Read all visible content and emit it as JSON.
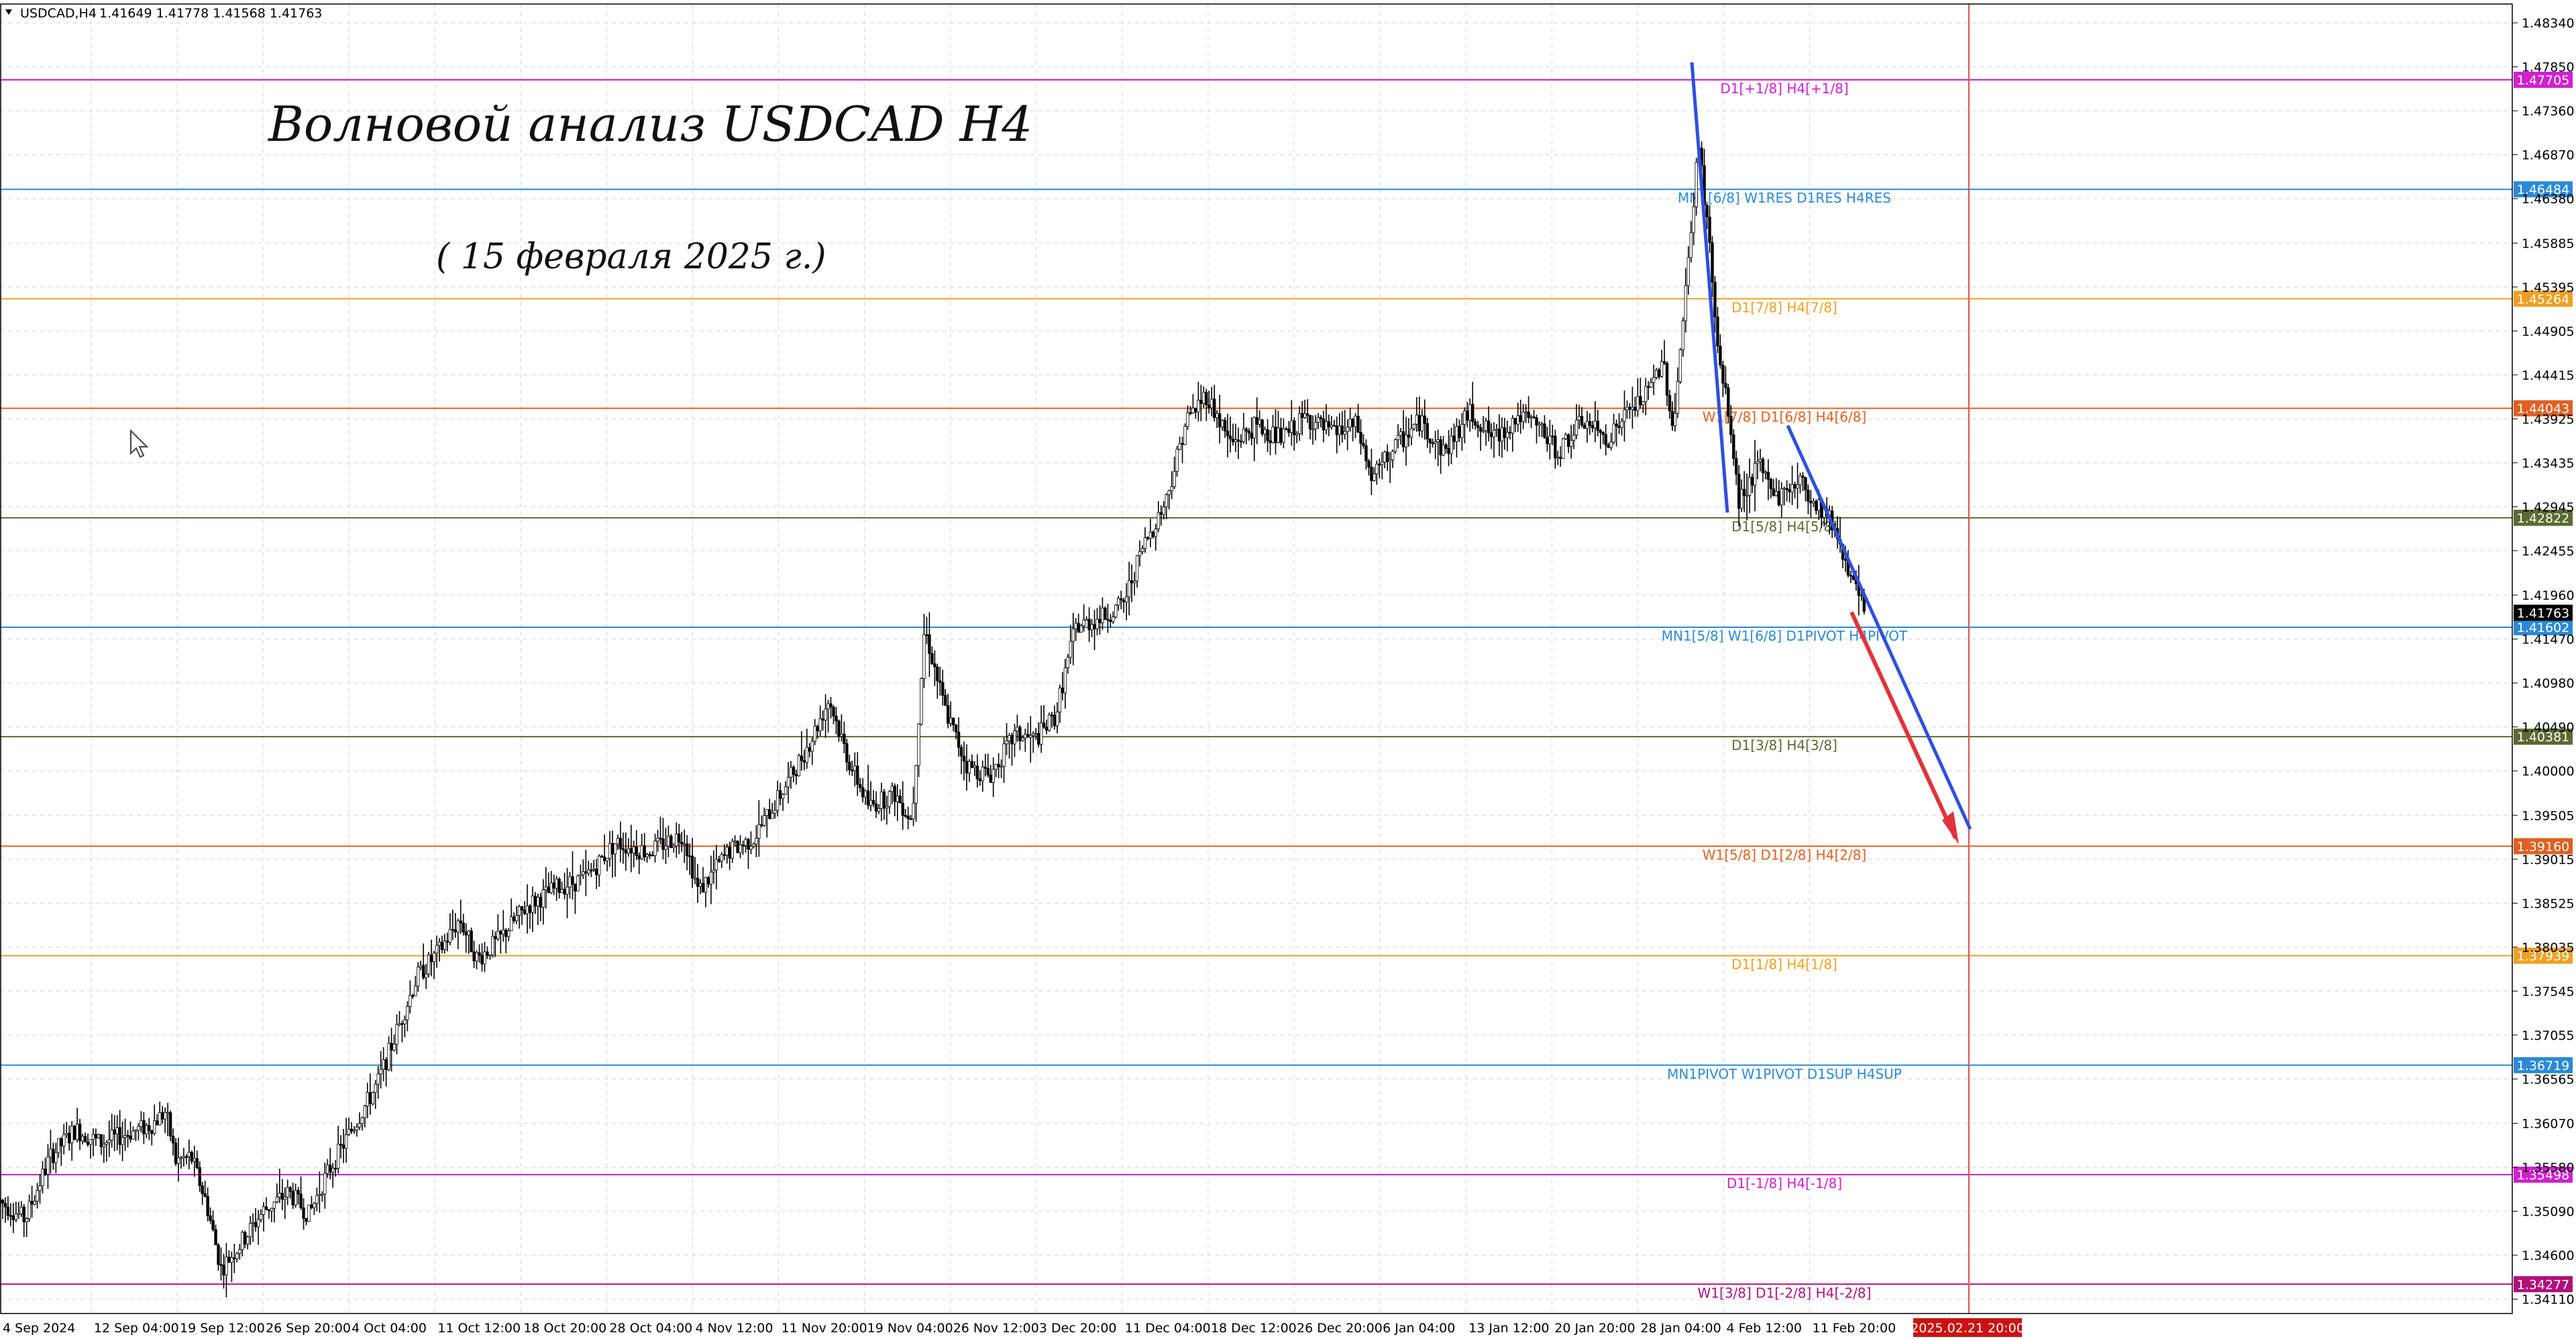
{
  "header": {
    "symbol": "USDCAD,H4",
    "ohlc": "1.41649 1.41778 1.41568 1.41763"
  },
  "annotations": {
    "title": "Волновой анализ USDCAD H4",
    "date": "( 15 февраля 2025 г.)"
  },
  "colors": {
    "blue_line": "#2f4fe0",
    "red_arrow": "#e0333a",
    "candles": "#000000",
    "vline": "#e05050"
  },
  "chart_data": {
    "type": "candlestick",
    "symbol": "USDCAD",
    "timeframe": "H4",
    "ylim": [
      1.3395,
      1.4855
    ],
    "y_ticks": [
      "1.48340",
      "1.47850",
      "1.47360",
      "1.46870",
      "1.46380",
      "1.45885",
      "1.45395",
      "1.44905",
      "1.44415",
      "1.43925",
      "1.43435",
      "1.42945",
      "1.42455",
      "1.41960",
      "1.41470",
      "1.40980",
      "1.40490",
      "1.40000",
      "1.39505",
      "1.39015",
      "1.38525",
      "1.38035",
      "1.37545",
      "1.37055",
      "1.36565",
      "1.36070",
      "1.35580",
      "1.35090",
      "1.34600",
      "1.34110"
    ],
    "x_ticks": [
      "4 Sep 2024",
      "12 Sep 04:00",
      "19 Sep 12:00",
      "26 Sep 20:00",
      "4 Oct 04:00",
      "11 Oct 12:00",
      "18 Oct 20:00",
      "28 Oct 04:00",
      "4 Nov 12:00",
      "11 Nov 20:00",
      "19 Nov 04:00",
      "26 Nov 12:00",
      "3 Dec 20:00",
      "11 Dec 04:00",
      "18 Dec 12:00",
      "26 Dec 20:00",
      "6 Jan 04:00",
      "13 Jan 12:00",
      "20 Jan 20:00",
      "28 Jan 04:00",
      "4 Feb 12:00",
      "11 Feb 20:00"
    ],
    "x_tick_positions": [
      0,
      0.0363,
      0.0705,
      0.1047,
      0.1389,
      0.1731,
      0.2073,
      0.2415,
      0.2757,
      0.3099,
      0.3441,
      0.3783,
      0.4125,
      0.4467,
      0.4809,
      0.5151,
      0.5493,
      0.5835,
      0.6177,
      0.6519,
      0.6861,
      0.7203
    ],
    "future_marker": "2025.02.21 20:00",
    "current_price": "1.41763",
    "levels": [
      {
        "value": 1.47705,
        "label": "D1[+1/8] H4[+1/8]",
        "tag": "1.47705",
        "color": "#d020d0"
      },
      {
        "value": 1.46484,
        "label": "MN1[6/8] W1RES D1RES H4RES",
        "tag": "1.46484",
        "color": "#2a8ad8"
      },
      {
        "value": 1.45264,
        "label": "D1[7/8] H4[7/8]",
        "tag": "1.45264",
        "color": "#f0a020"
      },
      {
        "value": 1.44043,
        "label": "W1[7/8] D1[6/8] H4[6/8]",
        "tag": "1.44043",
        "color": "#e06020"
      },
      {
        "value": 1.42822,
        "label": "D1[5/8] H4[5/8]",
        "tag": "1.42822",
        "color": "#5a6a30"
      },
      {
        "value": 1.41602,
        "label": "MN1[5/8] W1[6/8] D1PIVOT H4PIVOT",
        "tag": "1.41602",
        "color": "#2a8ad8"
      },
      {
        "value": 1.40381,
        "label": "D1[3/8] H4[3/8]",
        "tag": "1.40381",
        "color": "#5a6a30"
      },
      {
        "value": 1.3916,
        "label": "W1[5/8] D1[2/8] H4[2/8]",
        "tag": "1.39160",
        "color": "#e06020"
      },
      {
        "value": 1.37939,
        "label": "D1[1/8] H4[1/8]",
        "tag": "1.37939",
        "color": "#f0a020"
      },
      {
        "value": 1.36719,
        "label": "MN1PIVOT W1PIVOT D1SUP H4SUP",
        "tag": "1.36719",
        "color": "#2a8ad8"
      },
      {
        "value": 1.35498,
        "label": "D1[-1/8] H4[-1/8]",
        "tag": "1.35498",
        "color": "#d020d0"
      },
      {
        "value": 1.34277,
        "label": "W1[3/8] D1[-2/8] H4[-2/8]",
        "tag": "1.34277",
        "color": "#b0107a"
      }
    ],
    "price_path": [
      [
        0.0,
        1.352
      ],
      [
        0.01,
        1.35
      ],
      [
        0.02,
        1.357
      ],
      [
        0.03,
        1.36
      ],
      [
        0.04,
        1.3585
      ],
      [
        0.05,
        1.3595
      ],
      [
        0.06,
        1.3605
      ],
      [
        0.066,
        1.362
      ],
      [
        0.07,
        1.3565
      ],
      [
        0.076,
        1.357
      ],
      [
        0.082,
        1.352
      ],
      [
        0.088,
        1.3445
      ],
      [
        0.095,
        1.347
      ],
      [
        0.105,
        1.351
      ],
      [
        0.115,
        1.353
      ],
      [
        0.123,
        1.3505
      ],
      [
        0.13,
        1.355
      ],
      [
        0.14,
        1.36
      ],
      [
        0.15,
        1.365
      ],
      [
        0.158,
        1.371
      ],
      [
        0.166,
        1.377
      ],
      [
        0.175,
        1.38
      ],
      [
        0.183,
        1.3835
      ],
      [
        0.19,
        1.379
      ],
      [
        0.198,
        1.381
      ],
      [
        0.21,
        1.385
      ],
      [
        0.222,
        1.387
      ],
      [
        0.233,
        1.388
      ],
      [
        0.245,
        1.392
      ],
      [
        0.258,
        1.391
      ],
      [
        0.272,
        1.393
      ],
      [
        0.278,
        1.3865
      ],
      [
        0.29,
        1.391
      ],
      [
        0.3,
        1.3925
      ],
      [
        0.312,
        1.398
      ],
      [
        0.322,
        1.403
      ],
      [
        0.33,
        1.408
      ],
      [
        0.338,
        1.401
      ],
      [
        0.346,
        1.396
      ],
      [
        0.356,
        1.3975
      ],
      [
        0.363,
        1.3945
      ],
      [
        0.368,
        1.416
      ],
      [
        0.376,
        1.407
      ],
      [
        0.385,
        1.4005
      ],
      [
        0.394,
        1.3995
      ],
      [
        0.404,
        1.404
      ],
      [
        0.412,
        1.4035
      ],
      [
        0.42,
        1.406
      ],
      [
        0.428,
        1.416
      ],
      [
        0.438,
        1.417
      ],
      [
        0.447,
        1.4185
      ],
      [
        0.455,
        1.425
      ],
      [
        0.464,
        1.43
      ],
      [
        0.472,
        1.439
      ],
      [
        0.48,
        1.442
      ],
      [
        0.49,
        1.4365
      ],
      [
        0.5,
        1.4385
      ],
      [
        0.51,
        1.437
      ],
      [
        0.52,
        1.4395
      ],
      [
        0.53,
        1.4375
      ],
      [
        0.54,
        1.4385
      ],
      [
        0.546,
        1.4325
      ],
      [
        0.555,
        1.436
      ],
      [
        0.565,
        1.439
      ],
      [
        0.575,
        1.4355
      ],
      [
        0.585,
        1.44
      ],
      [
        0.595,
        1.437
      ],
      [
        0.604,
        1.4395
      ],
      [
        0.612,
        1.4385
      ],
      [
        0.62,
        1.4355
      ],
      [
        0.63,
        1.439
      ],
      [
        0.64,
        1.437
      ],
      [
        0.648,
        1.44
      ],
      [
        0.656,
        1.442
      ],
      [
        0.662,
        1.446
      ],
      [
        0.666,
        1.438
      ],
      [
        0.672,
        1.4565
      ],
      [
        0.676,
        1.47
      ],
      [
        0.68,
        1.46
      ],
      [
        0.684,
        1.446
      ],
      [
        0.688,
        1.44
      ],
      [
        0.692,
        1.43
      ],
      [
        0.7,
        1.434
      ],
      [
        0.708,
        1.4305
      ],
      [
        0.716,
        1.4325
      ],
      [
        0.722,
        1.43
      ],
      [
        0.728,
        1.4285
      ],
      [
        0.733,
        1.425
      ],
      [
        0.738,
        1.4205
      ],
      [
        0.742,
        1.418
      ]
    ]
  }
}
